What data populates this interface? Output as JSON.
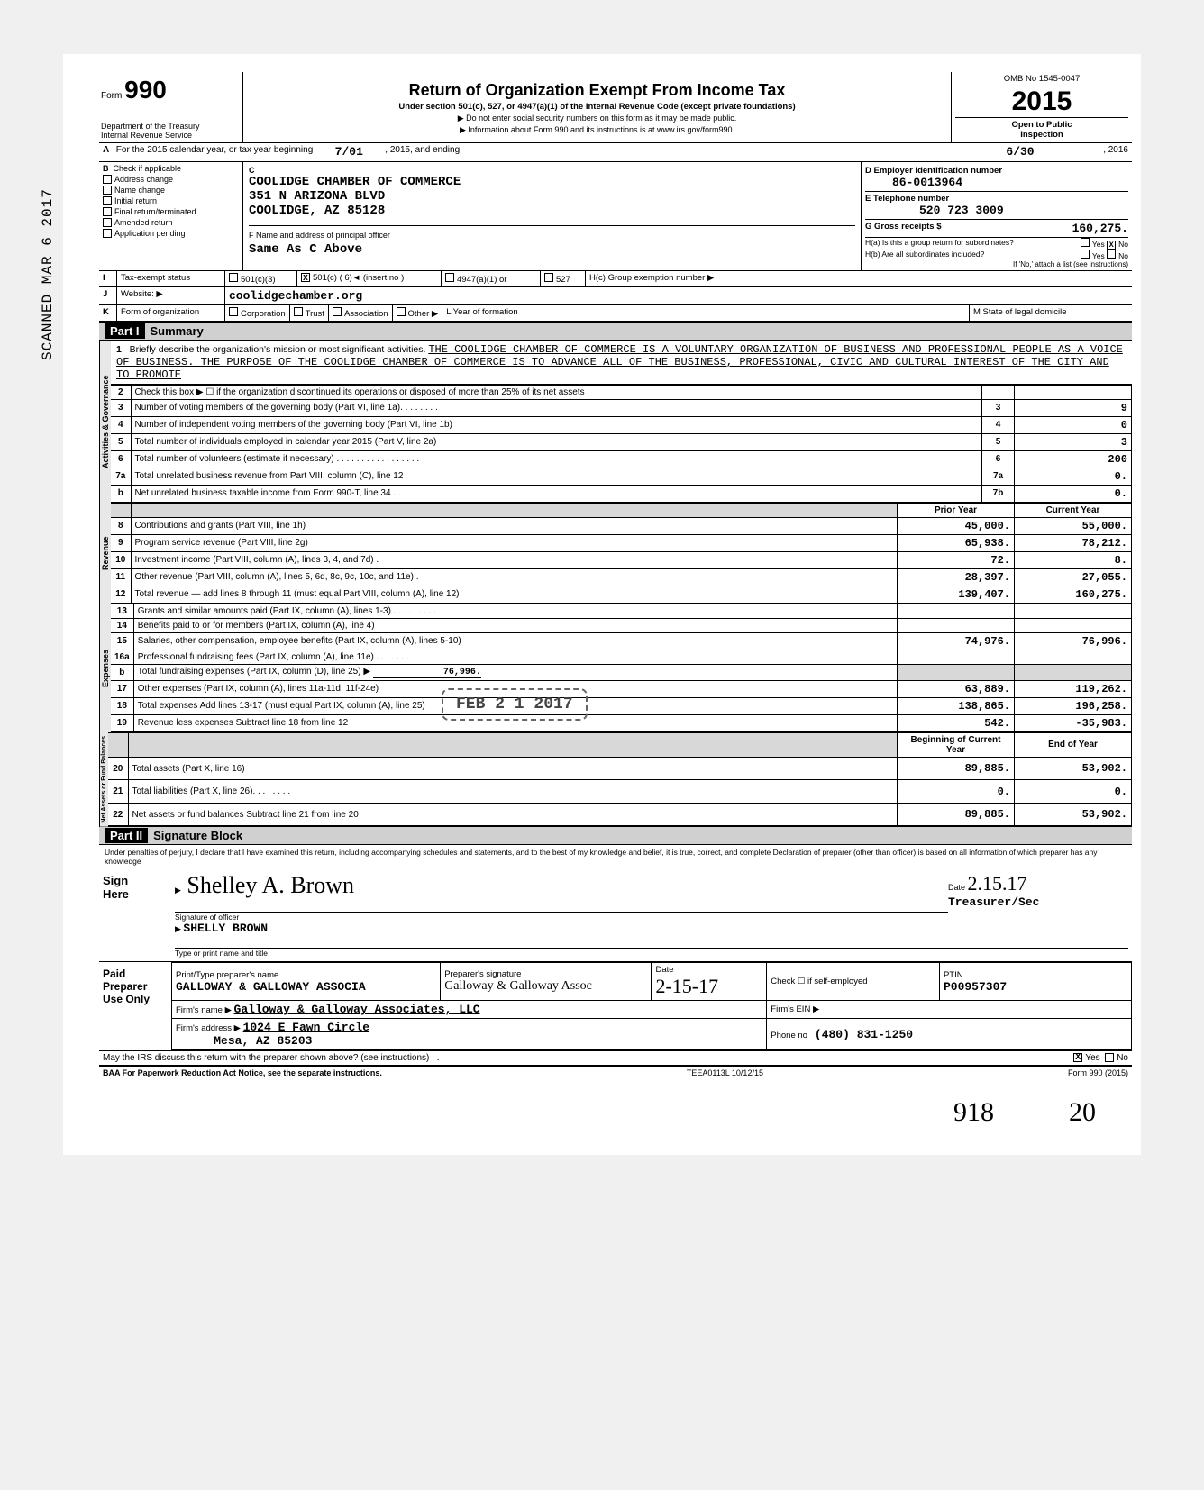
{
  "vertical_stamp": "SCANNED MAR 6 2017",
  "header": {
    "form_prefix": "Form",
    "form_number": "990",
    "title": "Return of Organization Exempt From Income Tax",
    "subtitle": "Under section 501(c), 527, or 4947(a)(1) of the Internal Revenue Code (except private foundations)",
    "note1": "▶ Do not enter social security numbers on this form as it may be made public.",
    "note2": "▶ Information about Form 990 and its instructions is at www.irs.gov/form990.",
    "dept1": "Department of the Treasury",
    "dept2": "Internal Revenue Service",
    "omb": "OMB No  1545-0047",
    "year": "2015",
    "open": "Open to Public",
    "inspect": "Inspection"
  },
  "lineA": {
    "prefix_A": "A",
    "text1": "For the 2015 calendar year, or tax year beginning",
    "begin": "7/01",
    "mid": ", 2015, and ending",
    "end": "6/30",
    "suffix": ", 2016"
  },
  "boxB": {
    "B": "B",
    "hdr": "Check if applicable",
    "opts": [
      "Address change",
      "Name change",
      "Initial return",
      "Final return/terminated",
      "Amended return",
      "Application pending"
    ]
  },
  "boxC": {
    "C": "C",
    "name": "COOLIDGE CHAMBER OF COMMERCE",
    "addr1": "351 N ARIZONA BLVD",
    "addr2": "COOLIDGE, AZ 85128"
  },
  "boxD": {
    "lbl": "D  Employer identification number",
    "val": "86-0013964"
  },
  "boxE": {
    "lbl": "E  Telephone number",
    "val": "520 723 3009"
  },
  "boxG": {
    "lbl": "G  Gross receipts $",
    "val": "160,275."
  },
  "boxF": {
    "lbl": "F  Name and address of principal officer",
    "val": "Same As C Above"
  },
  "boxH": {
    "ha": "H(a) Is this a group return for subordinates?",
    "hb": "H(b) Are all subordinates included?",
    "hb2": "If 'No,' attach a list (see instructions)",
    "hc": "H(c) Group exemption number ▶",
    "yes": "Yes",
    "no": "No",
    "ha_no_x": "X"
  },
  "rowI": {
    "lbl": "I",
    "txt": "Tax-exempt status",
    "o1": "501(c)(3)",
    "o2": "501(c) ( 6",
    "o2x": "X",
    "o2b": ")◄   (insert no )",
    "o3": "4947(a)(1) or",
    "o4": "527"
  },
  "rowJ": {
    "lbl": "J",
    "txt": "Website: ▶",
    "val": "coolidgechamber.org"
  },
  "rowK": {
    "lbl": "K",
    "txt": "Form of organization",
    "o1": "Corporation",
    "o2": "Trust",
    "o3": "Association",
    "o4": "Other ▶",
    "yf": "L  Year of formation",
    "st": "M  State of legal domicile"
  },
  "part1": {
    "hdr": "Part I",
    "title": "Summary"
  },
  "line1": {
    "num": "1",
    "txt": "Briefly describe the organization's mission or most significant activities.",
    "val": "THE COOLIDGE CHAMBER OF COMMERCE IS A VOLUNTARY ORGANIZATION OF BUSINESS AND PROFESSIONAL PEOPLE AS A VOICE OF BUSINESS. THE PURPOSE OF THE COOLIDGE CHAMBER OF COMMERCE IS TO ADVANCE ALL OF THE BUSINESS, PROFESSIONAL, CIVIC AND CULTURAL INTEREST OF THE CITY AND TO PROMOTE"
  },
  "gov_rows": [
    {
      "n": "2",
      "t": "Check this box ▶ ☐ if the organization discontinued its operations or disposed of more than 25% of its net assets",
      "b": "",
      "v": ""
    },
    {
      "n": "3",
      "t": "Number of voting members of the governing body (Part VI, line 1a). . . . . .   . .",
      "b": "3",
      "v": "9"
    },
    {
      "n": "4",
      "t": "Number of independent voting members of the governing body (Part VI, line 1b)",
      "b": "4",
      "v": "0"
    },
    {
      "n": "5",
      "t": "Total number of individuals employed in calendar year 2015 (Part V, line 2a)",
      "b": "5",
      "v": "3"
    },
    {
      "n": "6",
      "t": "Total number of volunteers (estimate if necessary)       . .  .    . . . . . . . . . .        . . . .",
      "b": "6",
      "v": "200"
    },
    {
      "n": "7a",
      "t": "Total unrelated business revenue from Part VIII, column (C), line 12",
      "b": "7a",
      "v": "0."
    },
    {
      "n": "b",
      "t": "Net unrelated business taxable income from Form 990-T, line 34 . .",
      "b": "7b",
      "v": "0."
    }
  ],
  "col_hdr": {
    "prior": "Prior Year",
    "curr": "Current Year"
  },
  "rev_rows": [
    {
      "n": "8",
      "t": "Contributions and grants (Part VIII, line 1h)",
      "p": "45,000.",
      "c": "55,000."
    },
    {
      "n": "9",
      "t": "Program service revenue (Part VIII, line 2g)",
      "p": "65,938.",
      "c": "78,212."
    },
    {
      "n": "10",
      "t": "Investment income (Part VIII, column (A), lines 3, 4, and 7d)    .",
      "p": "72.",
      "c": "8."
    },
    {
      "n": "11",
      "t": "Other revenue (Part VIII, column (A), lines 5, 6d, 8c, 9c, 10c, and 11e)      .",
      "p": "28,397.",
      "c": "27,055."
    },
    {
      "n": "12",
      "t": "Total revenue — add lines 8 through 11 (must equal Part VIII, column (A), line 12)",
      "p": "139,407.",
      "c": "160,275."
    }
  ],
  "exp_rows": [
    {
      "n": "13",
      "t": "Grants and similar amounts paid (Part IX, column (A), lines 1-3) . .   . . . .  . . .",
      "p": "",
      "c": ""
    },
    {
      "n": "14",
      "t": "Benefits paid to or for members (Part IX, column (A), line 4)",
      "p": "",
      "c": ""
    },
    {
      "n": "15",
      "t": "Salaries, other compensation, employee benefits (Part IX, column (A), lines 5-10)",
      "p": "74,976.",
      "c": "76,996."
    },
    {
      "n": "16a",
      "t": "Professional fundraising fees (Part IX, column (A), line 11e)  . .  . . .  . .",
      "p": "",
      "c": ""
    }
  ],
  "line16b": {
    "n": "b",
    "t": "Total fundraising expenses (Part IX, column (D), line 25) ▶",
    "v": "76,996."
  },
  "exp_rows2": [
    {
      "n": "17",
      "t": "Other expenses (Part IX, column (A), lines 11a-11d, 11f-24e)",
      "p": "63,889.",
      "c": "119,262."
    },
    {
      "n": "18",
      "t": "Total expenses  Add lines 13-17 (must equal Part IX, column (A), line 25)",
      "p": "138,865.",
      "c": "196,258."
    },
    {
      "n": "19",
      "t": "Revenue less expenses  Subtract line 18 from line 12",
      "p": "542.",
      "c": "-35,983."
    }
  ],
  "na_hdr": {
    "begin": "Beginning of Current Year",
    "end": "End of Year"
  },
  "na_rows": [
    {
      "n": "20",
      "t": "Total assets (Part X, line 16)",
      "p": "89,885.",
      "c": "53,902."
    },
    {
      "n": "21",
      "t": "Total liabilities (Part X, line 26).   . .  .    . .       . .",
      "p": "0.",
      "c": "0."
    },
    {
      "n": "22",
      "t": "Net assets or fund balances  Subtract line 21 from line 20",
      "p": "89,885.",
      "c": "53,902."
    }
  ],
  "side": {
    "gov": "Activities & Governance",
    "rev": "Revenue",
    "exp": "Expenses",
    "na": "Net Assets or\nFund Balances"
  },
  "part2": {
    "hdr": "Part II",
    "title": "Signature Block"
  },
  "decl": "Under penalties of perjury, I declare that I have examined this return, including accompanying schedules and statements, and to the best of my knowledge and belief, it is true, correct, and complete  Declaration of preparer (other than officer) is based on all information of which preparer has any knowledge",
  "sign": {
    "here": "Sign\nHere",
    "sig_lbl": "Signature of officer",
    "name": "SHELLY BROWN",
    "name_lbl": "Type or print name and title",
    "date_lbl": "Date",
    "date": "2.15.17",
    "title": "Treasurer/Sec"
  },
  "prep": {
    "lbl": "Paid\nPreparer\nUse Only",
    "r1a": "Print/Type preparer's name",
    "r1av": "GALLOWAY & GALLOWAY ASSOCIA",
    "r1b": "Preparer's signature",
    "r1c": "Date",
    "r1cv": "2-15-17",
    "r1d": "Check ☐ if self-employed",
    "r1e": "PTIN",
    "r1ev": "P00957307",
    "r2a": "Firm's name    ▶",
    "r2av": "Galloway & Galloway Associates, LLC",
    "r2b": "Firm's EIN ▶",
    "r3a": "Firm's address ▶",
    "r3av1": "1024 E Fawn Circle",
    "r3av2": "Mesa, AZ 85203",
    "r3b": "Phone no",
    "r3bv": "(480) 831-1250"
  },
  "discuss": {
    "txt": "May the IRS discuss this return with the preparer shown above? (see instructions)       . .",
    "yes": "Yes",
    "no": "No",
    "x": "X"
  },
  "footer": {
    "l": "BAA  For Paperwork Reduction Act Notice, see the separate instructions.",
    "m": "TEEA0113L  10/12/15",
    "r": "Form 990 (2015)"
  },
  "recv_stamp": "FEB 2 1 2017",
  "hand1": "918",
  "hand2": "20"
}
